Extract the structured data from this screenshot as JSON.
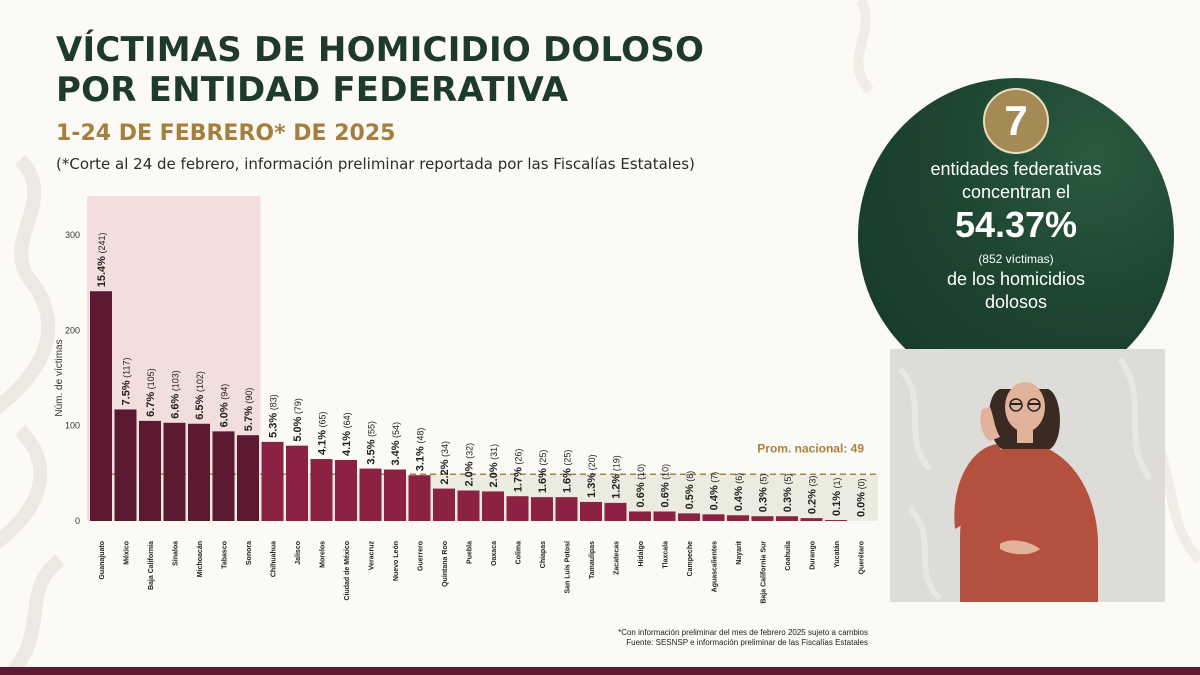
{
  "header": {
    "title_line1": "VÍCTIMAS DE HOMICIDIO DOLOSO",
    "title_line2": "POR ENTIDAD FEDERATIVA",
    "subtitle": "1-24 DE FEBRERO* DE 2025",
    "note": "(*Corte al 24 de febrero, información preliminar reportada por las Fiscalías Estatales)"
  },
  "colors": {
    "bar_top7": "#5c1a32",
    "bar_rest": "#8b2244",
    "highlight_band": "#f2dedd",
    "avg_band": "#ecebdf",
    "avg_line": "#a8823e",
    "title": "#1d3a2c",
    "gold": "#a57f3e",
    "circle": "#1d4530"
  },
  "chart_data": {
    "type": "bar",
    "ylabel": "Núm. de víctimas",
    "ylim": [
      0,
      300
    ],
    "yticks": [
      0,
      100,
      200,
      300
    ],
    "average": 49,
    "average_label": "Prom. nacional: 49",
    "highlight_top_n": 7,
    "categories": [
      "Guanajuato",
      "México",
      "Baja California",
      "Sinaloa",
      "Michoacán",
      "Tabasco",
      "Sonora",
      "Chihuahua",
      "Jalisco",
      "Morelos",
      "Ciudad de México",
      "Veracruz",
      "Nuevo León",
      "Guerrero",
      "Quintana Roo",
      "Puebla",
      "Oaxaca",
      "Colima",
      "Chiapas",
      "San Luis Potosí",
      "Tamaulipas",
      "Zacatecas",
      "Hidalgo",
      "Tlaxcala",
      "Campeche",
      "Aguascalientes",
      "Nayarit",
      "Baja California Sur",
      "Coahuila",
      "Durango",
      "Yucatán",
      "Querétaro"
    ],
    "values": [
      241,
      117,
      105,
      103,
      102,
      94,
      90,
      83,
      79,
      65,
      64,
      55,
      54,
      48,
      34,
      32,
      31,
      26,
      25,
      25,
      20,
      19,
      10,
      10,
      8,
      7,
      6,
      5,
      5,
      3,
      1,
      0
    ],
    "percent_labels": [
      "15.4%",
      "7.5%",
      "6.7%",
      "6.6%",
      "6.5%",
      "6.0%",
      "5.7%",
      "5.3%",
      "5.0%",
      "4.1%",
      "4.1%",
      "3.5%",
      "3.4%",
      "3.1%",
      "2.2%",
      "2.0%",
      "2.0%",
      "1.7%",
      "1.6%",
      "1.6%",
      "1.3%",
      "1.2%",
      "0.6%",
      "0.6%",
      "0.5%",
      "0.4%",
      "0.4%",
      "0.3%",
      "0.3%",
      "0.2%",
      "0.1%",
      "0.0%"
    ]
  },
  "footnotes": {
    "line1": "*Con información preliminar del mes de febrero 2025 sujeto a cambios",
    "line2": "Fuente: SESNSP e información preliminar de las Fiscalías Estatales"
  },
  "summary": {
    "count": "7",
    "line1": "entidades federativas",
    "line2": "concentran el",
    "percent": "54.37%",
    "victims": "(852 víctimas)",
    "line3": "de los homicidios",
    "line4": "dolosos"
  }
}
